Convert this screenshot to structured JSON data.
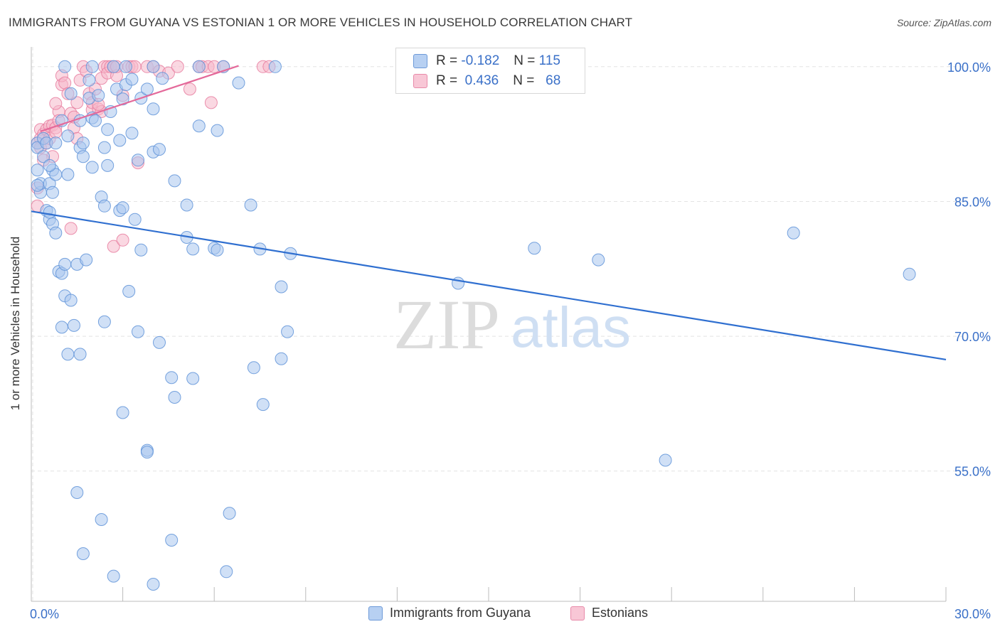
{
  "header": {
    "title": "IMMIGRANTS FROM GUYANA VS ESTONIAN 1 OR MORE VEHICLES IN HOUSEHOLD CORRELATION CHART",
    "source": "Source: ZipAtlas.com"
  },
  "watermark": {
    "zip": "ZIP",
    "atlas": "atlas"
  },
  "legend": {
    "rows": [
      {
        "r_label": "R =",
        "r_value": "-0.182",
        "n_label": "N =",
        "n_value": "115"
      },
      {
        "r_label": "R =",
        "r_value": "0.436",
        "n_label": "N =",
        "n_value": "68"
      }
    ]
  },
  "colors": {
    "blue_fill": "#a9c6ef",
    "blue_stroke": "#5f93d8",
    "blue_line": "#2f6fd0",
    "pink_fill": "#f5b8cb",
    "pink_stroke": "#e77ea0",
    "pink_line": "#e4699a",
    "tick_label": "#3a70c8",
    "grid": "#e4e4e4"
  },
  "chart_data": {
    "type": "scatter",
    "title": "IMMIGRANTS FROM GUYANA VS ESTONIAN 1 OR MORE VEHICLES IN HOUSEHOLD CORRELATION CHART",
    "xlabel": "",
    "ylabel": "1 or more Vehicles in Household",
    "xlim": [
      0,
      30
    ],
    "ylim": [
      40.5,
      102.2
    ],
    "x_tick_labels": [
      {
        "value": 0,
        "label": "0.0%"
      },
      {
        "value": 30,
        "label": "30.0%"
      }
    ],
    "x_minor_ticks": [
      3,
      6,
      9,
      12,
      15,
      18,
      21,
      24,
      27,
      30
    ],
    "y_ticks": [
      {
        "value": 100,
        "label": "100.0%"
      },
      {
        "value": 85,
        "label": "85.0%"
      },
      {
        "value": 70,
        "label": "70.0%"
      },
      {
        "value": 55,
        "label": "55.0%"
      }
    ],
    "grid": true,
    "legend_position": "top-center",
    "series": [
      {
        "name": "Immigrants from Guyana",
        "color": "#5f93d8",
        "trend": {
          "x": [
            0,
            30
          ],
          "y": [
            83.9,
            67.4
          ]
        },
        "points": [
          [
            0.2,
            91.5
          ],
          [
            0.2,
            88.5
          ],
          [
            0.2,
            91
          ],
          [
            0.3,
            86
          ],
          [
            0.3,
            87
          ],
          [
            0.4,
            90
          ],
          [
            0.4,
            92
          ],
          [
            0.5,
            84
          ],
          [
            0.5,
            91.5
          ],
          [
            0.6,
            83
          ],
          [
            0.6,
            87
          ],
          [
            0.6,
            83.8
          ],
          [
            0.7,
            86
          ],
          [
            0.7,
            88.5
          ],
          [
            0.7,
            82.5
          ],
          [
            0.8,
            81.5
          ],
          [
            0.8,
            88
          ],
          [
            0.9,
            77.2
          ],
          [
            1.0,
            94
          ],
          [
            1.0,
            71
          ],
          [
            1.0,
            77
          ],
          [
            1.1,
            74.5
          ],
          [
            1.1,
            78
          ],
          [
            1.2,
            68
          ],
          [
            1.2,
            88
          ],
          [
            1.3,
            97
          ],
          [
            1.3,
            74
          ],
          [
            1.4,
            71.2
          ],
          [
            1.5,
            78
          ],
          [
            1.6,
            91
          ],
          [
            1.6,
            94
          ],
          [
            1.7,
            91.5
          ],
          [
            1.7,
            90
          ],
          [
            1.8,
            78.5
          ],
          [
            1.9,
            96.5
          ],
          [
            1.9,
            98.5
          ],
          [
            2.0,
            100
          ],
          [
            2.0,
            94.3
          ],
          [
            2.0,
            88.8
          ],
          [
            2.1,
            94
          ],
          [
            2.3,
            85.5
          ],
          [
            2.4,
            84.5
          ],
          [
            2.4,
            91
          ],
          [
            2.4,
            71.6
          ],
          [
            2.5,
            93
          ],
          [
            2.5,
            89
          ],
          [
            2.6,
            95
          ],
          [
            2.7,
            100
          ],
          [
            2.8,
            97.5
          ],
          [
            2.9,
            84
          ],
          [
            2.9,
            91.8
          ],
          [
            3.0,
            84.3
          ],
          [
            3.0,
            96.4
          ],
          [
            3.1,
            98
          ],
          [
            3.2,
            75
          ],
          [
            3.3,
            92.6
          ],
          [
            3.3,
            98.6
          ],
          [
            3.4,
            83
          ],
          [
            3.5,
            89.6
          ],
          [
            3.6,
            96.5
          ],
          [
            3.6,
            79.6
          ],
          [
            3.8,
            97.5
          ],
          [
            4.0,
            100
          ],
          [
            4.0,
            95.3
          ],
          [
            4.0,
            90.5
          ],
          [
            4.2,
            90.8
          ],
          [
            4.3,
            98.7
          ],
          [
            4.7,
            87.3
          ],
          [
            5.1,
            84.6
          ],
          [
            5.1,
            81
          ],
          [
            5.3,
            79.7
          ],
          [
            5.5,
            93.4
          ],
          [
            5.5,
            100
          ],
          [
            6.0,
            79.8
          ],
          [
            6.1,
            92.9
          ],
          [
            6.1,
            79.6
          ],
          [
            6.8,
            98.2
          ],
          [
            7.2,
            84.6
          ],
          [
            7.5,
            79.7
          ],
          [
            8.0,
            100
          ],
          [
            8.2,
            75.5
          ],
          [
            8.5,
            79.2
          ],
          [
            14.0,
            75.9
          ],
          [
            16.5,
            79.8
          ],
          [
            18.6,
            78.5
          ],
          [
            25.0,
            81.5
          ],
          [
            28.8,
            76.9
          ],
          [
            1.1,
            100
          ],
          [
            1.6,
            68
          ],
          [
            3.5,
            70.5
          ],
          [
            4.2,
            69.3
          ],
          [
            4.6,
            65.4
          ],
          [
            5.3,
            65.3
          ],
          [
            7.3,
            66.5
          ],
          [
            8.2,
            67.5
          ],
          [
            8.4,
            70.5
          ],
          [
            3.0,
            61.5
          ],
          [
            4.7,
            63.2
          ],
          [
            7.6,
            62.4
          ],
          [
            3.8,
            57.3
          ],
          [
            3.8,
            57.1
          ],
          [
            20.8,
            56.2
          ],
          [
            1.5,
            52.6
          ],
          [
            2.3,
            49.6
          ],
          [
            4.6,
            47.3
          ],
          [
            6.5,
            50.3
          ],
          [
            1.7,
            45.8
          ],
          [
            2.7,
            43.3
          ],
          [
            4.0,
            42.4
          ],
          [
            6.4,
            43.8
          ],
          [
            0.8,
            91.5
          ],
          [
            0.6,
            89
          ],
          [
            0.2,
            86.8
          ],
          [
            1.2,
            92.3
          ],
          [
            2.2,
            96.8
          ],
          [
            3.1,
            100
          ],
          [
            6.3,
            100
          ]
        ]
      },
      {
        "name": "Estonians",
        "color": "#e77ea0",
        "trend": {
          "x": [
            0.3,
            6.8
          ],
          "y": [
            92.8,
            100.1
          ]
        },
        "points": [
          [
            0.2,
            84.5
          ],
          [
            0.2,
            86.5
          ],
          [
            0.2,
            91.5
          ],
          [
            0.3,
            93
          ],
          [
            0.3,
            92
          ],
          [
            0.3,
            91
          ],
          [
            0.4,
            92.5
          ],
          [
            0.5,
            93
          ],
          [
            0.5,
            91.5
          ],
          [
            0.6,
            93.4
          ],
          [
            0.6,
            92
          ],
          [
            0.7,
            93.5
          ],
          [
            0.7,
            90
          ],
          [
            0.8,
            93.2
          ],
          [
            0.8,
            92.7
          ],
          [
            0.9,
            95
          ],
          [
            0.9,
            94
          ],
          [
            1.0,
            98
          ],
          [
            1.0,
            99
          ],
          [
            1.1,
            98.2
          ],
          [
            1.2,
            97
          ],
          [
            1.3,
            94.8
          ],
          [
            1.4,
            93.2
          ],
          [
            1.5,
            96
          ],
          [
            1.5,
            92
          ],
          [
            1.6,
            98.5
          ],
          [
            1.7,
            100
          ],
          [
            1.8,
            99.5
          ],
          [
            1.9,
            97
          ],
          [
            2.0,
            95.2
          ],
          [
            2.0,
            96
          ],
          [
            2.1,
            97.5
          ],
          [
            2.2,
            95.3
          ],
          [
            2.3,
            95
          ],
          [
            2.3,
            98.7
          ],
          [
            2.4,
            100
          ],
          [
            2.5,
            100
          ],
          [
            2.5,
            99.3
          ],
          [
            2.6,
            100
          ],
          [
            2.7,
            100
          ],
          [
            2.8,
            99
          ],
          [
            2.8,
            100
          ],
          [
            3.0,
            96.8
          ],
          [
            3.2,
            100
          ],
          [
            3.3,
            100
          ],
          [
            3.4,
            100
          ],
          [
            3.5,
            89.3
          ],
          [
            3.8,
            100
          ],
          [
            4.0,
            100
          ],
          [
            4.2,
            99.5
          ],
          [
            4.5,
            99.3
          ],
          [
            4.8,
            100
          ],
          [
            5.2,
            97.5
          ],
          [
            5.5,
            100
          ],
          [
            5.6,
            100
          ],
          [
            5.8,
            100
          ],
          [
            5.9,
            96
          ],
          [
            6.0,
            100
          ],
          [
            6.3,
            100
          ],
          [
            7.6,
            100
          ],
          [
            7.8,
            100
          ],
          [
            2.7,
            80
          ],
          [
            3.0,
            80.7
          ],
          [
            1.3,
            82
          ],
          [
            0.4,
            89.6
          ],
          [
            0.8,
            95.9
          ],
          [
            1.4,
            94.4
          ],
          [
            2.2,
            95.8
          ]
        ]
      }
    ]
  },
  "bottom_legend": {
    "items": [
      {
        "label": "Immigrants from Guyana"
      },
      {
        "label": "Estonians"
      }
    ]
  }
}
